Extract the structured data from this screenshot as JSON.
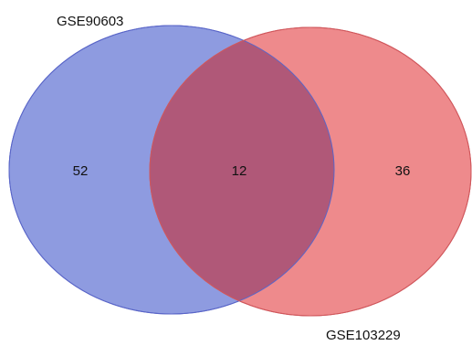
{
  "sets": [
    {
      "name": "GSE90603",
      "color": "#8e9be0",
      "stroke": "#5a66c8"
    },
    {
      "name": "GSE103229",
      "color": "#ee8a8c",
      "stroke": "#d0575c"
    }
  ],
  "counts": {
    "left_only": "52",
    "intersection": "12",
    "right_only": "36"
  },
  "intersection_color": "#b05878"
}
